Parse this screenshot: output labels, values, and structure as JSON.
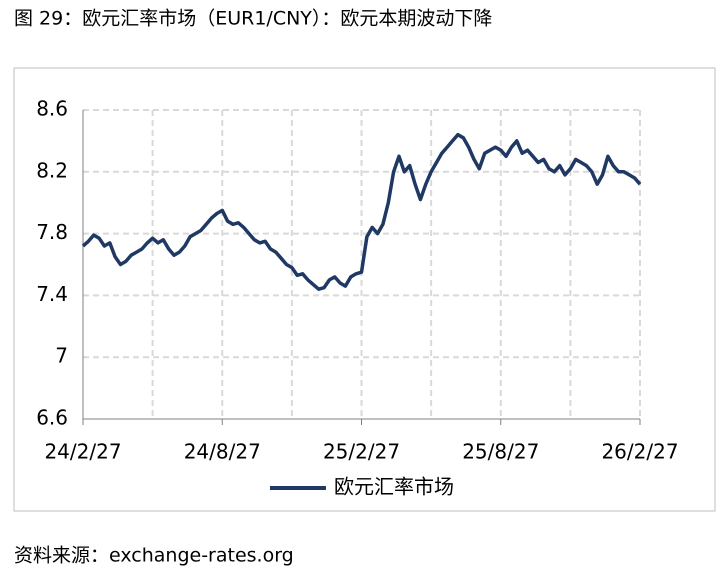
{
  "chart_data": {
    "type": "line",
    "title": "图 29：欧元汇率市场（EUR1/CNY）：欧元本期波动下降",
    "source": "资料来源：exchange-rates.org",
    "categories": [
      "24/2/27",
      null,
      null,
      null,
      null,
      null,
      null,
      null,
      null,
      null,
      null,
      null,
      null,
      null,
      null,
      null,
      null,
      null,
      null,
      null,
      null,
      null,
      null,
      null,
      null,
      null,
      "24/8/27",
      null,
      null,
      null,
      null,
      null,
      null,
      null,
      null,
      null,
      null,
      null,
      null,
      null,
      null,
      null,
      null,
      null,
      null,
      null,
      null,
      null,
      null,
      null,
      null,
      null,
      "25/2/27",
      null,
      null,
      null,
      null,
      null,
      null,
      null,
      null,
      null,
      null,
      null,
      null,
      null,
      null,
      null,
      null,
      null,
      null,
      null,
      null,
      null,
      null,
      null,
      null,
      null,
      "25/8/27",
      null,
      null,
      null,
      null,
      null,
      null,
      null,
      null,
      null,
      null,
      null,
      null,
      null,
      null,
      null,
      null,
      null,
      null,
      null,
      null,
      null,
      null,
      null,
      null,
      null,
      "26/2/27"
    ],
    "series": [
      {
        "name": "欧元汇率市场",
        "color": "#1f3864",
        "values": [
          7.72,
          7.75,
          7.79,
          7.77,
          7.72,
          7.74,
          7.65,
          7.6,
          7.62,
          7.66,
          7.68,
          7.7,
          7.74,
          7.77,
          7.74,
          7.76,
          7.7,
          7.66,
          7.68,
          7.72,
          7.78,
          7.8,
          7.82,
          7.86,
          7.9,
          7.93,
          7.95,
          7.88,
          7.86,
          7.87,
          7.84,
          7.8,
          7.76,
          7.74,
          7.75,
          7.7,
          7.68,
          7.64,
          7.6,
          7.58,
          7.53,
          7.54,
          7.5,
          7.47,
          7.44,
          7.45,
          7.5,
          7.52,
          7.48,
          7.46,
          7.52,
          7.54,
          7.55,
          7.78,
          7.84,
          7.8,
          7.86,
          8.0,
          8.2,
          8.3,
          8.2,
          8.24,
          8.12,
          8.02,
          8.12,
          8.2,
          8.26,
          8.32,
          8.36,
          8.4,
          8.44,
          8.42,
          8.36,
          8.28,
          8.22,
          8.32,
          8.34,
          8.36,
          8.34,
          8.3,
          8.36,
          8.4,
          8.32,
          8.34,
          8.3,
          8.26,
          8.28,
          8.22,
          8.2,
          8.24,
          8.18,
          8.22,
          8.28,
          8.26,
          8.24,
          8.2,
          8.12,
          8.18,
          8.3,
          8.24,
          8.2,
          8.2,
          8.18,
          8.16,
          8.12
        ]
      }
    ],
    "ylim": [
      6.6,
      8.6
    ],
    "yticks": [
      6.6,
      7,
      7.4,
      7.8,
      8.2,
      8.6
    ],
    "grid": true
  }
}
